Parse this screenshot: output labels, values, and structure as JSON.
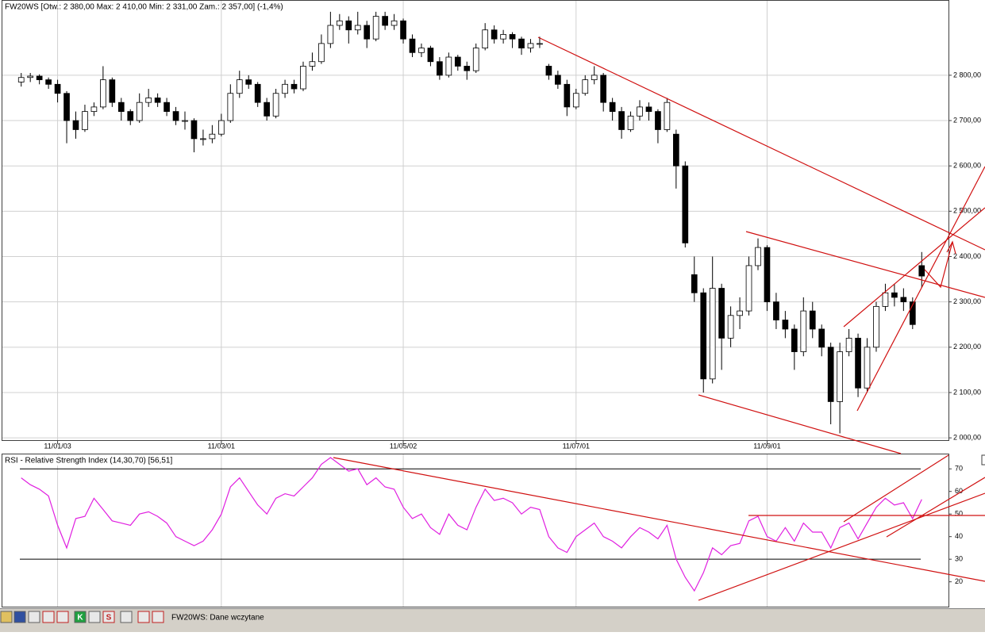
{
  "chart_data": [
    {
      "type": "candlestick",
      "title": "FW20WS [Otw.: 2 380,00   Max: 2 410,00   Min: 2 331,00   Zam.: 2 357,00] (-1,4%)",
      "categories": [
        null,
        null,
        null,
        null,
        "11/01/03",
        null,
        null,
        null,
        null,
        null,
        null,
        null,
        null,
        null,
        null,
        null,
        null,
        null,
        null,
        null,
        null,
        null,
        "11/03/01",
        null,
        null,
        null,
        null,
        null,
        null,
        null,
        null,
        null,
        null,
        null,
        null,
        null,
        null,
        null,
        null,
        null,
        null,
        null,
        "11/05/02",
        null,
        null,
        null,
        null,
        null,
        null,
        null,
        null,
        null,
        null,
        null,
        null,
        null,
        null,
        null,
        null,
        null,
        null,
        "11/07/01",
        null,
        null,
        null,
        null,
        null,
        null,
        null,
        null,
        null,
        null,
        null,
        null,
        null,
        null,
        null,
        null,
        null,
        null,
        null,
        null,
        "11/09/01",
        null,
        null,
        null,
        null,
        null,
        null,
        null,
        null,
        null,
        null,
        null,
        null,
        null,
        null,
        null,
        null,
        null
      ],
      "ohlc": [
        [
          2785,
          2805,
          2775,
          2795
        ],
        [
          2795,
          2805,
          2785,
          2798
        ],
        [
          2798,
          2802,
          2780,
          2790
        ],
        [
          2790,
          2795,
          2770,
          2780
        ],
        [
          2780,
          2790,
          2740,
          2760
        ],
        [
          2760,
          2765,
          2650,
          2700
        ],
        [
          2700,
          2720,
          2660,
          2680
        ],
        [
          2680,
          2735,
          2675,
          2720
        ],
        [
          2720,
          2740,
          2710,
          2730
        ],
        [
          2730,
          2820,
          2725,
          2790
        ],
        [
          2790,
          2795,
          2730,
          2740
        ],
        [
          2740,
          2750,
          2700,
          2720
        ],
        [
          2720,
          2725,
          2690,
          2700
        ],
        [
          2700,
          2760,
          2695,
          2740
        ],
        [
          2740,
          2770,
          2730,
          2750
        ],
        [
          2750,
          2760,
          2730,
          2740
        ],
        [
          2740,
          2750,
          2710,
          2720
        ],
        [
          2720,
          2730,
          2690,
          2700
        ],
        [
          2700,
          2720,
          2680,
          2700
        ],
        [
          2700,
          2705,
          2630,
          2660
        ],
        [
          2660,
          2680,
          2645,
          2660
        ],
        [
          2660,
          2690,
          2650,
          2670
        ],
        [
          2670,
          2715,
          2665,
          2700
        ],
        [
          2700,
          2780,
          2695,
          2760
        ],
        [
          2760,
          2810,
          2750,
          2790
        ],
        [
          2790,
          2800,
          2770,
          2780
        ],
        [
          2780,
          2785,
          2730,
          2740
        ],
        [
          2740,
          2750,
          2700,
          2710
        ],
        [
          2710,
          2770,
          2705,
          2760
        ],
        [
          2760,
          2790,
          2750,
          2780
        ],
        [
          2780,
          2790,
          2760,
          2770
        ],
        [
          2770,
          2830,
          2765,
          2820
        ],
        [
          2820,
          2850,
          2810,
          2830
        ],
        [
          2830,
          2890,
          2825,
          2870
        ],
        [
          2870,
          2940,
          2860,
          2910
        ],
        [
          2910,
          2935,
          2900,
          2920
        ],
        [
          2920,
          2930,
          2870,
          2900
        ],
        [
          2900,
          2940,
          2890,
          2910
        ],
        [
          2910,
          2920,
          2860,
          2880
        ],
        [
          2880,
          2940,
          2875,
          2930
        ],
        [
          2930,
          2940,
          2900,
          2910
        ],
        [
          2910,
          2935,
          2900,
          2920
        ],
        [
          2920,
          2925,
          2870,
          2880
        ],
        [
          2880,
          2890,
          2840,
          2850
        ],
        [
          2850,
          2870,
          2840,
          2860
        ],
        [
          2860,
          2865,
          2820,
          2830
        ],
        [
          2830,
          2840,
          2790,
          2800
        ],
        [
          2800,
          2850,
          2795,
          2840
        ],
        [
          2840,
          2845,
          2810,
          2820
        ],
        [
          2820,
          2830,
          2790,
          2810
        ],
        [
          2810,
          2870,
          2805,
          2860
        ],
        [
          2860,
          2915,
          2855,
          2900
        ],
        [
          2900,
          2910,
          2870,
          2880
        ],
        [
          2880,
          2900,
          2870,
          2890
        ],
        [
          2890,
          2895,
          2860,
          2880
        ],
        [
          2880,
          2885,
          2845,
          2860
        ],
        [
          2860,
          2880,
          2850,
          2870
        ],
        [
          2870,
          2885,
          2860,
          2870
        ],
        [
          2820,
          2825,
          2790,
          2800
        ],
        [
          2800,
          2810,
          2770,
          2780
        ],
        [
          2780,
          2790,
          2710,
          2730
        ],
        [
          2730,
          2770,
          2725,
          2760
        ],
        [
          2760,
          2800,
          2755,
          2790
        ],
        [
          2790,
          2820,
          2780,
          2800
        ],
        [
          2800,
          2805,
          2720,
          2740
        ],
        [
          2740,
          2750,
          2700,
          2720
        ],
        [
          2720,
          2730,
          2660,
          2680
        ],
        [
          2680,
          2720,
          2675,
          2710
        ],
        [
          2710,
          2745,
          2700,
          2730
        ],
        [
          2730,
          2740,
          2700,
          2720
        ],
        [
          2720,
          2725,
          2650,
          2680
        ],
        [
          2680,
          2750,
          2675,
          2740
        ],
        [
          2670,
          2680,
          2550,
          2600
        ],
        [
          2600,
          2610,
          2420,
          2430
        ],
        [
          2360,
          2400,
          2300,
          2320
        ],
        [
          2320,
          2330,
          2100,
          2130
        ],
        [
          2130,
          2400,
          2120,
          2330
        ],
        [
          2330,
          2340,
          2150,
          2220
        ],
        [
          2220,
          2290,
          2200,
          2270
        ],
        [
          2270,
          2310,
          2240,
          2280
        ],
        [
          2280,
          2400,
          2270,
          2380
        ],
        [
          2380,
          2440,
          2370,
          2420
        ],
        [
          2420,
          2425,
          2280,
          2300
        ],
        [
          2300,
          2320,
          2240,
          2260
        ],
        [
          2260,
          2280,
          2220,
          2240
        ],
        [
          2240,
          2250,
          2150,
          2190
        ],
        [
          2190,
          2310,
          2180,
          2280
        ],
        [
          2280,
          2300,
          2220,
          2240
        ],
        [
          2240,
          2250,
          2180,
          2200
        ],
        [
          2200,
          2210,
          2030,
          2080
        ],
        [
          2080,
          2210,
          2010,
          2190
        ],
        [
          2190,
          2240,
          2180,
          2220
        ],
        [
          2220,
          2230,
          2090,
          2110
        ],
        [
          2110,
          2220,
          2100,
          2200
        ],
        [
          2200,
          2300,
          2190,
          2290
        ],
        [
          2290,
          2340,
          2280,
          2320
        ],
        [
          2320,
          2340,
          2290,
          2310
        ],
        [
          2310,
          2330,
          2280,
          2300
        ],
        [
          2300,
          2310,
          2240,
          2250
        ],
        [
          2380,
          2410,
          2331,
          2357
        ]
      ],
      "up_color": "#ffffff",
      "down_color": "#000000",
      "ylim": [
        1995,
        2966
      ],
      "yticks": [
        {
          "value": 2000,
          "label": "2 000,00"
        },
        {
          "value": 2100,
          "label": "2 100,00"
        },
        {
          "value": 2200,
          "label": "2 200,00"
        },
        {
          "value": 2300,
          "label": "2 300,00"
        },
        {
          "value": 2400,
          "label": "2 400,00"
        },
        {
          "value": 2500,
          "label": "2 500,00"
        },
        {
          "value": 2600,
          "label": "2 600,00"
        },
        {
          "value": 2700,
          "label": "2 700,00"
        },
        {
          "value": 2800,
          "label": "2 800,00"
        }
      ],
      "grid": true
    },
    {
      "type": "line",
      "title": "RSI - Relative Strength Index (14,30,70) [56,51]",
      "values": [
        66,
        63,
        61,
        58,
        45,
        35,
        48,
        49,
        57,
        52,
        47,
        46,
        45,
        50,
        51,
        49,
        46,
        40,
        38,
        36,
        38,
        43,
        50,
        62,
        66,
        60,
        54,
        50,
        57,
        59,
        58,
        62,
        66,
        72,
        75,
        72,
        69,
        70,
        63,
        66,
        62,
        61,
        53,
        48,
        50,
        44,
        41,
        50,
        45,
        43,
        53,
        61,
        56,
        57,
        55,
        50,
        53,
        52,
        40,
        35,
        33,
        40,
        43,
        46,
        40,
        38,
        35,
        40,
        44,
        42,
        39,
        45,
        30,
        22,
        16,
        24,
        35,
        32,
        36,
        37,
        47,
        49,
        40,
        38,
        44,
        38,
        46,
        42,
        42,
        35,
        44,
        46,
        39,
        46,
        53,
        57,
        54,
        55,
        48,
        56.51
      ],
      "color": "#e020e0",
      "ylim": [
        9,
        76.4
      ],
      "yticks": [
        20,
        30,
        40,
        50,
        60,
        70
      ],
      "levels": [
        30,
        70
      ]
    }
  ],
  "status_bar": {
    "icons": [
      "K",
      "S"
    ],
    "message": "FW20WS: Dane wczytane"
  }
}
